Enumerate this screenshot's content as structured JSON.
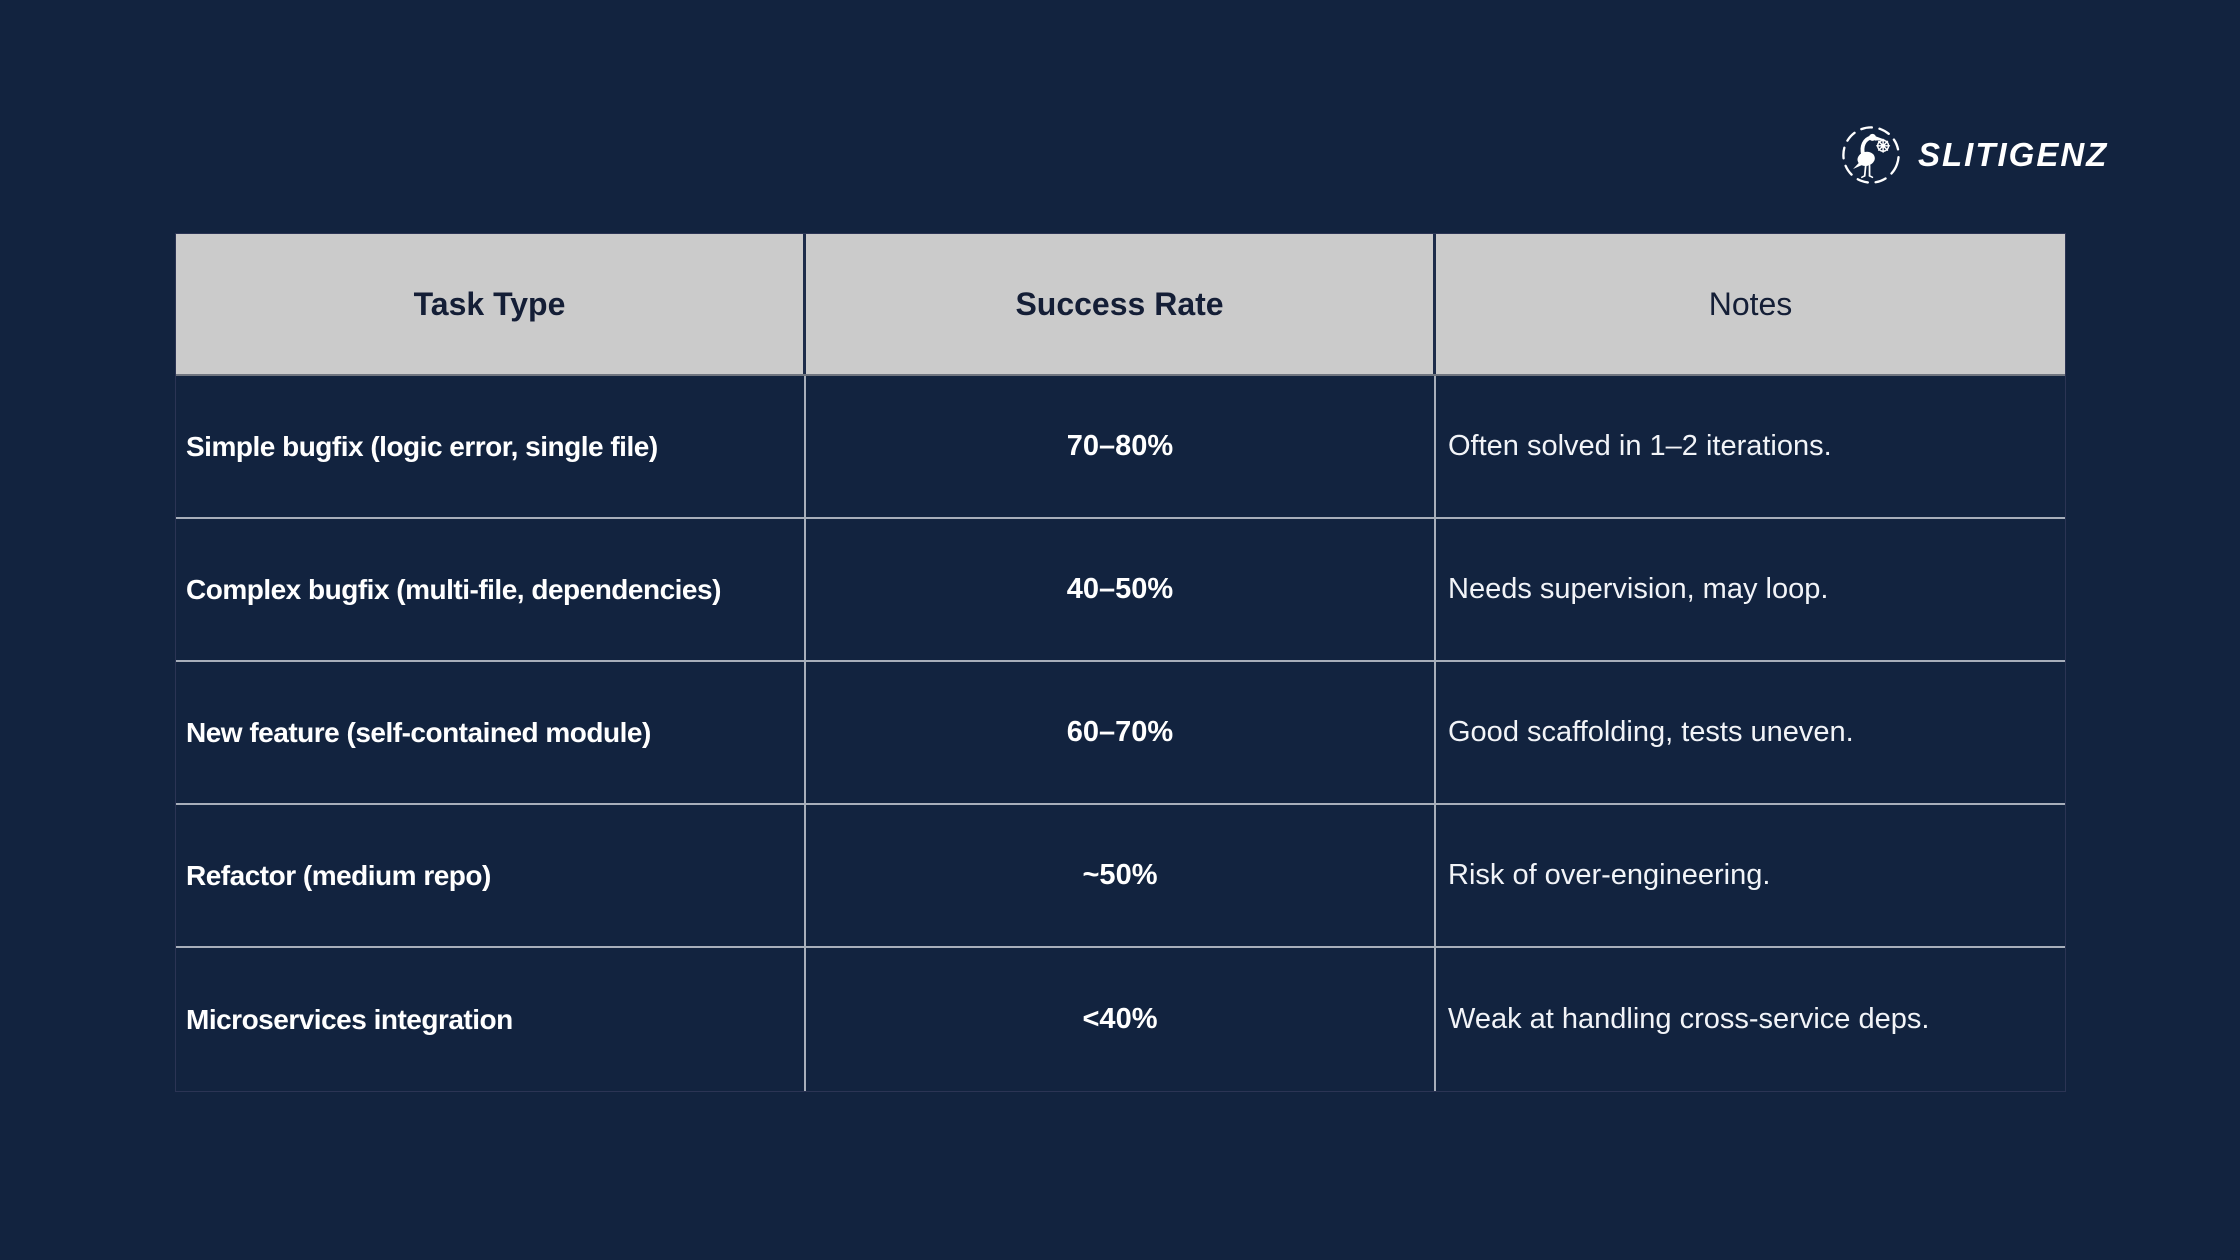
{
  "background_color": "#12233f",
  "logo": {
    "brand": "SLITIGENZ",
    "icon": "stork-helm-logo"
  },
  "chart_data": {
    "type": "table",
    "title": "",
    "legend": "none",
    "header_bg": "#cbcbcb",
    "header_text_color": "#141e36",
    "body_text_color": "#ffffff",
    "grid_line_color": "#a7aeba",
    "columns": [
      {
        "label": "Task Type"
      },
      {
        "label": "Success Rate"
      },
      {
        "label": "Notes"
      }
    ],
    "rows": [
      {
        "task": "Simple bugfix (logic error, single file)",
        "rate": "70–80%",
        "notes": "Often solved in 1–2 iterations."
      },
      {
        "task": "Complex bugfix (multi-file, dependencies)",
        "rate": "40–50%",
        "notes": "Needs supervision, may loop."
      },
      {
        "task": "New feature (self-contained module)",
        "rate": "60–70%",
        "notes": "Good scaffolding, tests uneven."
      },
      {
        "task": "Refactor (medium repo)",
        "rate": "~50%",
        "notes": "Risk of over-engineering."
      },
      {
        "task": "Microservices integration",
        "rate": "<40%",
        "notes": "Weak at handling cross-service deps."
      }
    ]
  }
}
